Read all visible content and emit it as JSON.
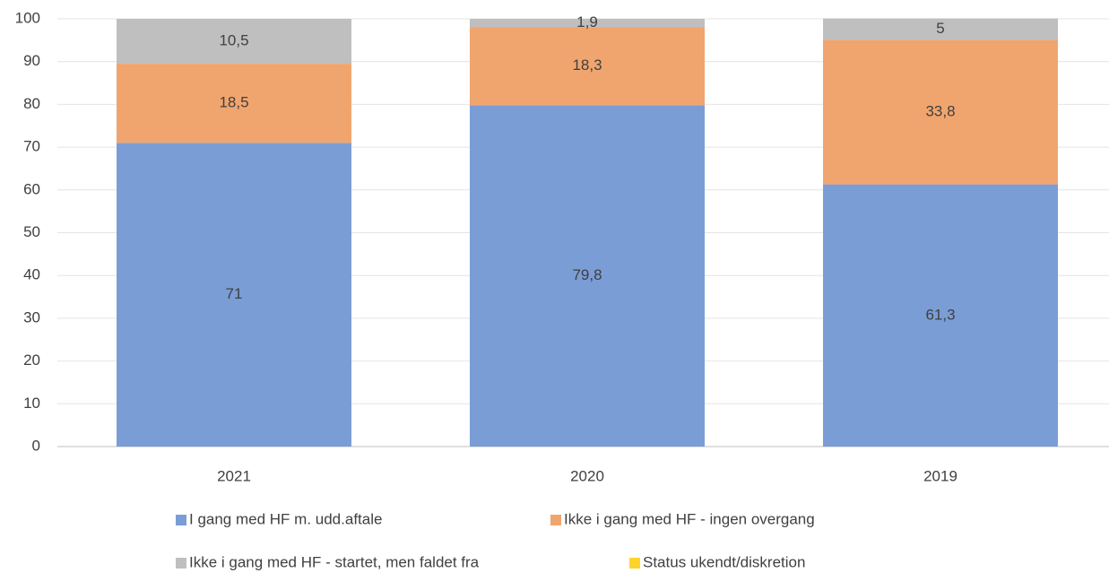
{
  "chart_data": {
    "type": "stacked_bar",
    "categories": [
      "2021",
      "2020",
      "2019"
    ],
    "series": [
      {
        "name": "I gang med HF m. udd.aftale",
        "color": "#7b9dd6",
        "values": [
          71,
          79.8,
          61.3
        ],
        "value_labels": [
          "71",
          "79,8",
          "61,3"
        ]
      },
      {
        "name": "Ikke i gang med HF - ingen overgang",
        "color": "#f1a56e",
        "values": [
          18.5,
          18.3,
          33.8
        ],
        "value_labels": [
          "18,5",
          "18,3",
          "33,8"
        ]
      },
      {
        "name": "Ikke i gang med HF - startet, men faldet fra",
        "color": "#bfbfbf",
        "values": [
          10.5,
          1.9,
          5
        ],
        "value_labels": [
          "10,5",
          "1,9",
          "5"
        ]
      },
      {
        "name": "Status ukendt/diskretion",
        "color": "#ffd42a",
        "values": [
          0,
          0,
          0
        ]
      }
    ],
    "ylim": [
      0,
      100
    ],
    "yticks": [
      0,
      10,
      20,
      30,
      40,
      50,
      60,
      70,
      80,
      90,
      100
    ],
    "grid": true
  }
}
